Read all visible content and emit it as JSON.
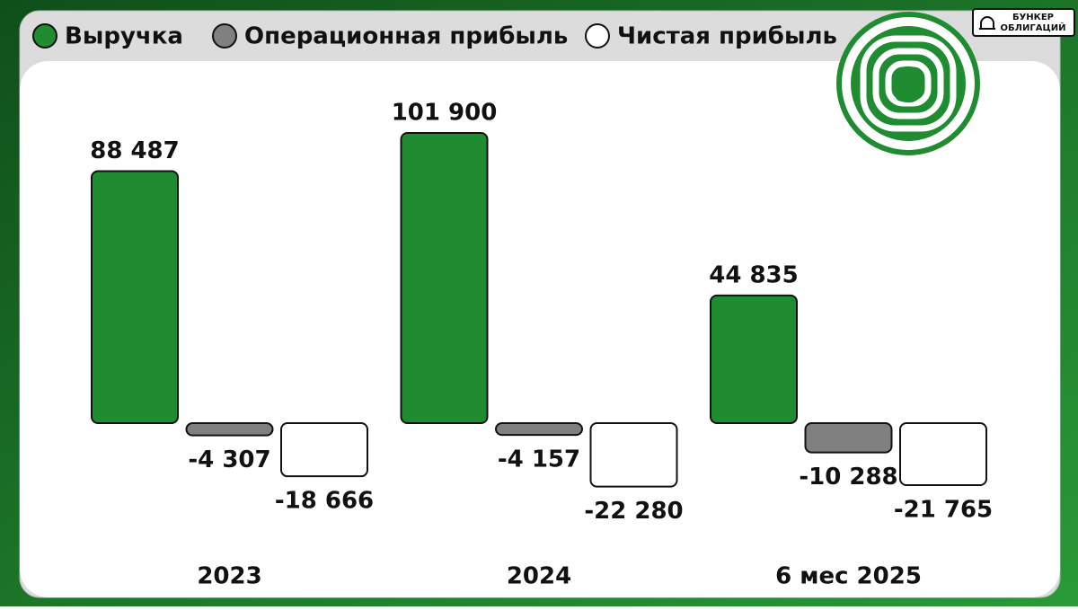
{
  "chart_data": {
    "type": "bar",
    "categories": [
      "2023",
      "2024",
      "6 мес 2025"
    ],
    "series": [
      {
        "name": "Выручка",
        "color": "#1f8c31",
        "values": [
          88487,
          101900,
          44835
        ],
        "value_labels": [
          "88 487",
          "101 900",
          "44 835"
        ]
      },
      {
        "name": "Операционная прибыль",
        "color": "#808080",
        "values": [
          -4307,
          -4157,
          -10288
        ],
        "value_labels": [
          "-4 307",
          "-4 157",
          "-10 288"
        ]
      },
      {
        "name": "Чистая прибыль",
        "color": "#ffffff",
        "values": [
          -18666,
          -22280,
          -21765
        ],
        "value_labels": [
          "-18 666",
          "-22 280",
          "-21 765"
        ]
      }
    ],
    "ylim": [
      -30000,
      110000
    ],
    "legend": "top"
  },
  "brand": {
    "line1": "БУНКЕР",
    "line2": "ОБЛИГАЦИЙ"
  }
}
